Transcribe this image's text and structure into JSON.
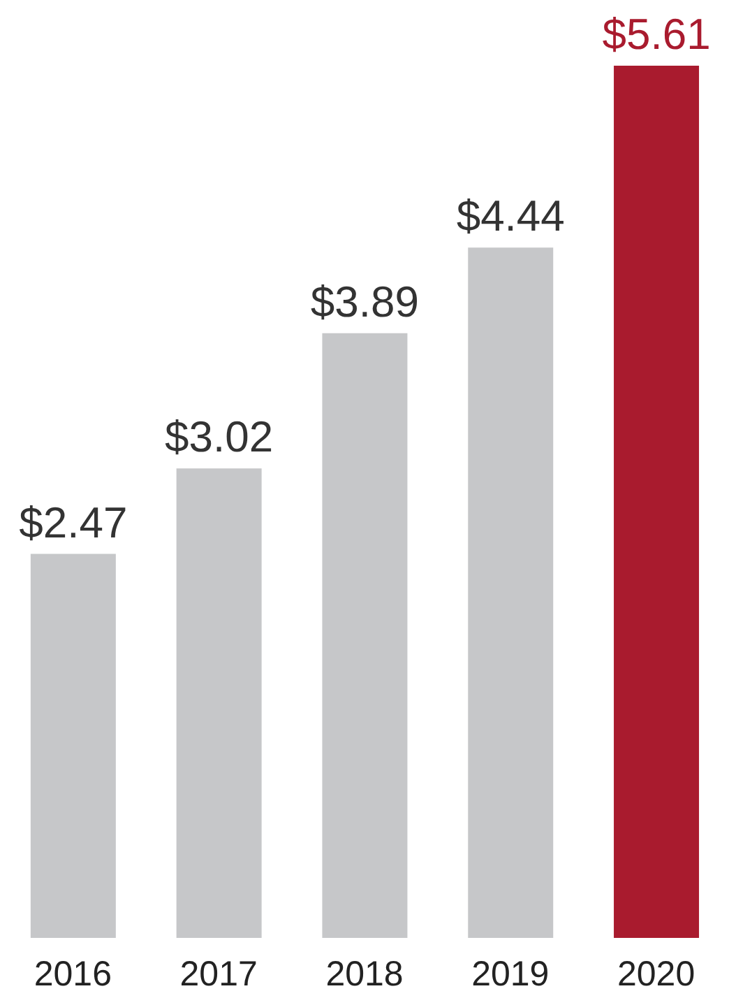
{
  "chart_data": {
    "type": "bar",
    "categories": [
      "2016",
      "2017",
      "2018",
      "2019",
      "2020"
    ],
    "values": [
      2.47,
      3.02,
      3.89,
      4.44,
      5.61
    ],
    "colors": [
      "#c6c7c9",
      "#c6c7c9",
      "#c6c7c9",
      "#c6c7c9",
      "#a91b2e"
    ],
    "value_labels": [
      "$2.47",
      "$3.02",
      "$3.89",
      "$4.44",
      "$5.61"
    ],
    "ylim": [
      0,
      5.61
    ],
    "grid": false,
    "legend": false
  }
}
